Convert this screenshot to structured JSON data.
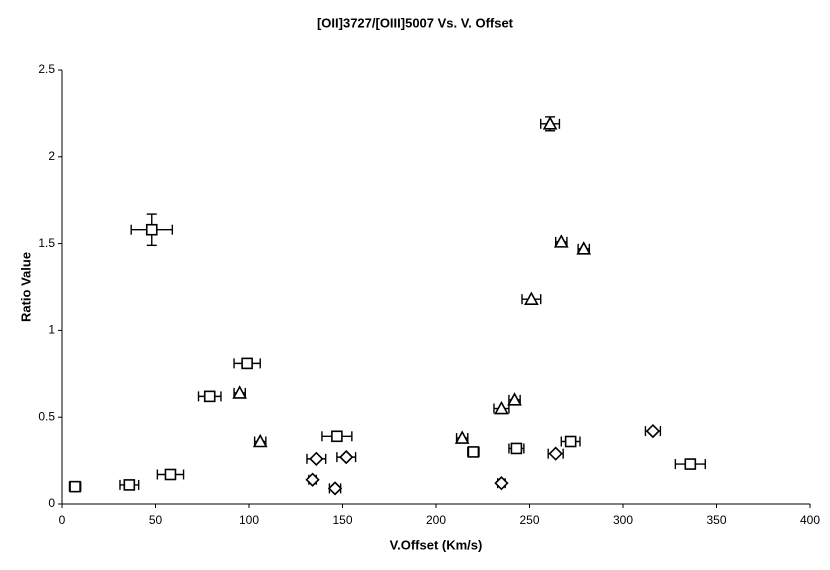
{
  "chart_data": {
    "type": "scatter",
    "title": "[OII]3727/[OIII]5007 Vs. V. Offset",
    "x_label": "V.Offset (Km/s)",
    "y_label": "Ratio Value",
    "xlim": [
      0,
      400
    ],
    "ylim": [
      0,
      2.5
    ],
    "xticks": [
      0,
      50,
      100,
      150,
      200,
      250,
      300,
      350,
      400
    ],
    "yticks": [
      0,
      0.5,
      1,
      1.5,
      2,
      2.5
    ],
    "grid": false,
    "series": [
      {
        "marker": "square",
        "color": "#000000",
        "x": [
          7,
          36,
          58,
          48,
          79,
          99,
          147,
          220,
          243,
          272,
          336
        ],
        "values": [
          0.1,
          0.11,
          0.17,
          1.58,
          0.62,
          0.81,
          0.39,
          0.3,
          0.32,
          0.36,
          0.23
        ],
        "xerr": [
          3,
          5,
          7,
          11,
          6,
          7,
          8,
          3,
          4,
          5,
          8
        ],
        "yerr": [
          null,
          null,
          null,
          0.09,
          null,
          null,
          null,
          null,
          null,
          null,
          null
        ]
      },
      {
        "marker": "triangle",
        "color": "#000000",
        "x": [
          95,
          106,
          214,
          235,
          242,
          251,
          261,
          267,
          279
        ],
        "values": [
          0.64,
          0.36,
          0.38,
          0.55,
          0.6,
          1.18,
          2.19,
          1.51,
          1.47
        ],
        "xerr": [
          3,
          3,
          3,
          4,
          3,
          5,
          5,
          3,
          3
        ],
        "yerr": [
          null,
          null,
          null,
          null,
          null,
          null,
          0.04,
          null,
          null
        ]
      },
      {
        "marker": "diamond",
        "color": "#000000",
        "x": [
          134,
          136,
          146,
          152,
          235,
          264,
          316
        ],
        "values": [
          0.14,
          0.26,
          0.09,
          0.27,
          0.12,
          0.29,
          0.42
        ],
        "xerr": [
          2,
          5,
          3,
          5,
          2,
          4,
          4
        ],
        "yerr": [
          null,
          null,
          null,
          null,
          null,
          null,
          null
        ]
      }
    ]
  }
}
